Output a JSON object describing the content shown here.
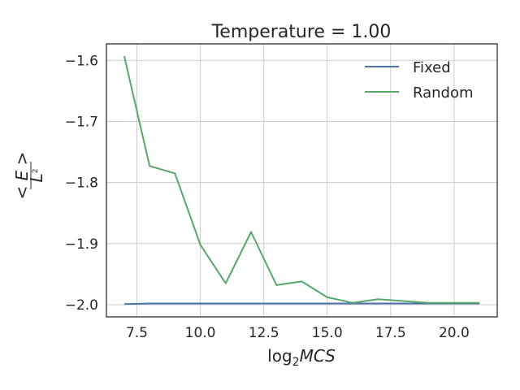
{
  "chart_data": {
    "type": "line",
    "title": "Temperature = 1.00",
    "xlabel_prefix": "log",
    "xlabel_sub": "2",
    "xlabel_var": "MCS",
    "ylabel_numerator": "< E >",
    "ylabel_denominator": "L",
    "ylabel_denominator_sup": "2",
    "xlim": [
      6.3,
      21.7
    ],
    "ylim": [
      -2.02,
      -1.573
    ],
    "xticks": [
      7.5,
      10.0,
      12.5,
      15.0,
      17.5,
      20.0
    ],
    "xtick_labels": [
      "7.5",
      "10.0",
      "12.5",
      "15.0",
      "17.5",
      "20.0"
    ],
    "yticks": [
      -1.6,
      -1.7,
      -1.8,
      -1.9,
      -2.0
    ],
    "ytick_labels": [
      "−1.6",
      "−1.7",
      "−1.8",
      "−1.9",
      "−2.0"
    ],
    "grid": true,
    "legend_position": "top-right",
    "x": [
      7,
      8,
      9,
      10,
      11,
      12,
      13,
      14,
      15,
      16,
      17,
      18,
      19,
      20,
      21
    ],
    "series": [
      {
        "name": "Fixed",
        "color": "#4c72b0",
        "values": [
          -1.999,
          -1.998,
          -1.998,
          -1.998,
          -1.998,
          -1.998,
          -1.998,
          -1.998,
          -1.998,
          -1.998,
          -1.998,
          -1.998,
          -1.998,
          -1.998,
          -1.998
        ]
      },
      {
        "name": "Random",
        "color": "#55a868",
        "values": [
          -1.593,
          -1.773,
          -1.785,
          -1.902,
          -1.965,
          -1.881,
          -1.968,
          -1.962,
          -1.988,
          -1.997,
          -1.991,
          -1.994,
          -1.997,
          -1.997,
          -1.997
        ]
      }
    ]
  }
}
